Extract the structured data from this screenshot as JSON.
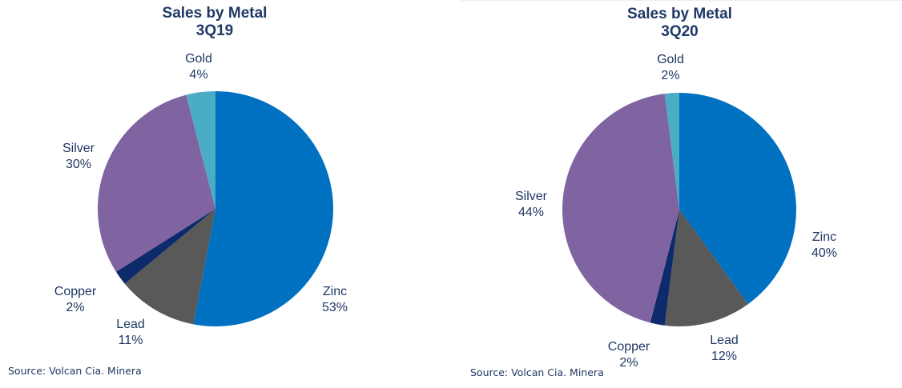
{
  "chart_data": [
    {
      "type": "pie",
      "title": "Sales by Metal",
      "subtitle": "3Q19",
      "start_category": "Zinc",
      "direction": "clockwise",
      "slices": [
        {
          "label": "Zinc",
          "value": 53,
          "display": "53%",
          "color": "#0070C0"
        },
        {
          "label": "Lead",
          "value": 11,
          "display": "11%",
          "color": "#595959"
        },
        {
          "label": "Copper",
          "value": 2,
          "display": "2%",
          "color": "#0D2B6B"
        },
        {
          "label": "Silver",
          "value": 30,
          "display": "30%",
          "color": "#8064A2"
        },
        {
          "label": "Gold",
          "value": 4,
          "display": "4%",
          "color": "#4BACC6"
        }
      ],
      "source": "Source: Volcan Cia. Minera"
    },
    {
      "type": "pie",
      "title": "Sales by Metal",
      "subtitle": "3Q20",
      "start_category": "Zinc",
      "direction": "clockwise",
      "slices": [
        {
          "label": "Zinc",
          "value": 40,
          "display": "40%",
          "color": "#0070C0"
        },
        {
          "label": "Lead",
          "value": 12,
          "display": "12%",
          "color": "#595959"
        },
        {
          "label": "Copper",
          "value": 2,
          "display": "2%",
          "color": "#0D2B6B"
        },
        {
          "label": "Silver",
          "value": 44,
          "display": "44%",
          "color": "#8064A2"
        },
        {
          "label": "Gold",
          "value": 2,
          "display": "2%",
          "color": "#4BACC6"
        }
      ],
      "source": "Source: Volcan Cia. Minera"
    }
  ]
}
